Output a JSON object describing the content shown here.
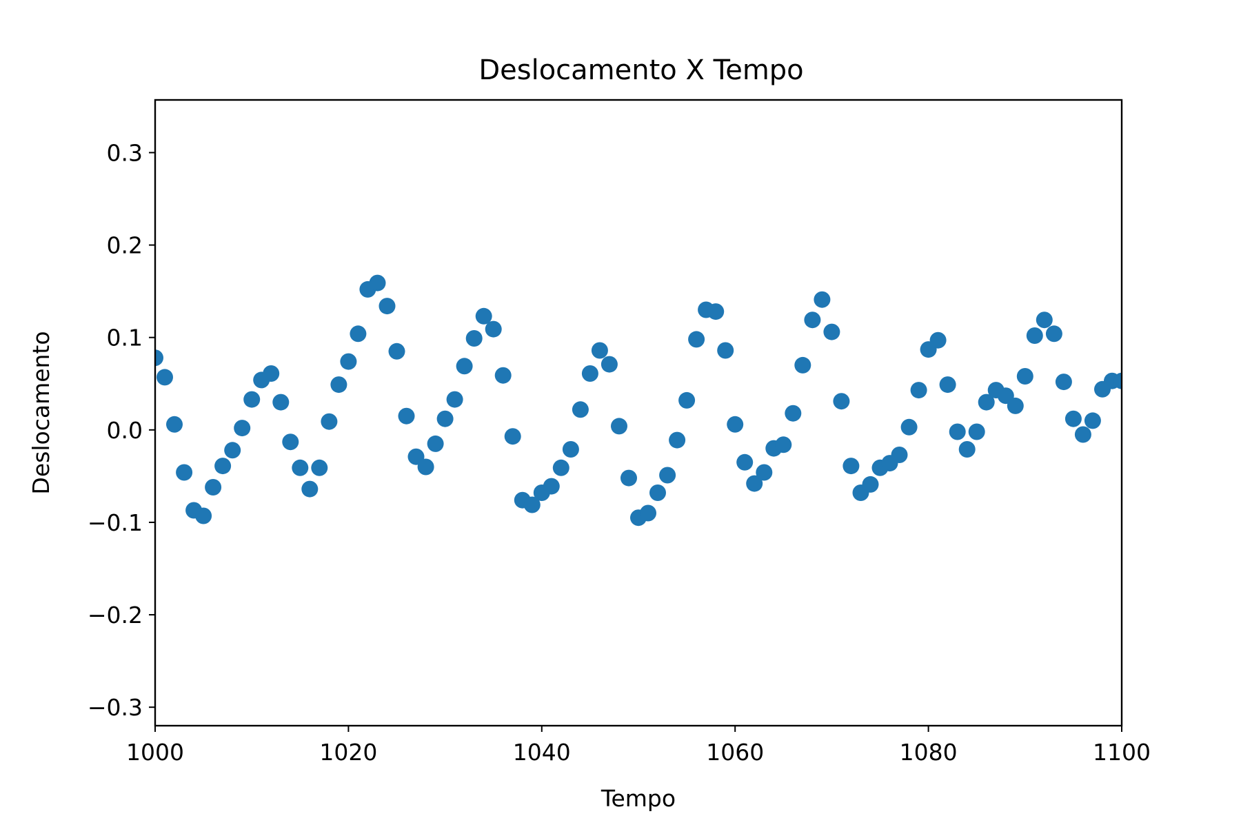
{
  "chart_data": {
    "type": "scatter",
    "title": "Deslocamento X Tempo",
    "xlabel": "Tempo",
    "ylabel": "Deslocamento",
    "xlim": [
      1000,
      1100
    ],
    "ylim": [
      -0.32,
      0.357
    ],
    "xticks": [
      1000,
      1020,
      1040,
      1060,
      1080,
      1100
    ],
    "xtick_labels": [
      "1000",
      "1020",
      "1040",
      "1060",
      "1080",
      "1100"
    ],
    "yticks": [
      -0.3,
      -0.2,
      -0.1,
      0.0,
      0.1,
      0.2,
      0.3
    ],
    "ytick_labels": [
      "−0.3",
      "−0.2",
      "−0.1",
      "0.0",
      "0.1",
      "0.2",
      "0.3"
    ],
    "grid": false,
    "color": "#1f77b4",
    "series": [
      {
        "x": [
          1000,
          1001,
          1002,
          1003,
          1004,
          1005,
          1006,
          1007,
          1008,
          1009,
          1010,
          1011,
          1012,
          1013,
          1014,
          1015,
          1016,
          1017,
          1018,
          1019,
          1020,
          1021,
          1022,
          1023,
          1024,
          1025,
          1026,
          1027,
          1028,
          1029,
          1030,
          1031,
          1032,
          1033,
          1034,
          1035,
          1036,
          1037,
          1038,
          1039,
          1040,
          1041,
          1042,
          1043,
          1044,
          1045,
          1046,
          1047,
          1048,
          1049,
          1050,
          1051,
          1052,
          1053,
          1054,
          1055,
          1056,
          1057,
          1058,
          1059,
          1060,
          1061,
          1062,
          1063,
          1064,
          1065,
          1066,
          1067,
          1068,
          1069,
          1070,
          1071,
          1072,
          1073,
          1074,
          1075,
          1076,
          1077,
          1078,
          1079,
          1080,
          1081,
          1082,
          1083,
          1084,
          1085,
          1086,
          1087,
          1088,
          1089,
          1090,
          1091,
          1092,
          1093,
          1094,
          1095,
          1096,
          1097,
          1098,
          1099,
          1100
        ],
        "y": [
          0.078,
          0.057,
          0.006,
          -0.046,
          -0.087,
          -0.093,
          -0.062,
          -0.039,
          -0.022,
          0.002,
          0.033,
          0.054,
          0.061,
          0.03,
          -0.013,
          -0.041,
          -0.064,
          -0.041,
          0.009,
          0.049,
          0.074,
          0.104,
          0.152,
          0.159,
          0.134,
          0.085,
          0.015,
          -0.029,
          -0.04,
          -0.015,
          0.012,
          0.033,
          0.069,
          0.099,
          0.123,
          0.109,
          0.059,
          -0.007,
          -0.076,
          -0.081,
          -0.068,
          -0.061,
          -0.041,
          -0.021,
          0.022,
          0.061,
          0.086,
          0.071,
          0.004,
          -0.052,
          -0.095,
          -0.09,
          -0.068,
          -0.049,
          -0.011,
          0.032,
          0.098,
          0.13,
          0.128,
          0.086,
          0.006,
          -0.035,
          -0.058,
          -0.046,
          -0.02,
          -0.016,
          0.018,
          0.07,
          0.119,
          0.141,
          0.106,
          0.031,
          -0.039,
          -0.068,
          -0.059,
          -0.041,
          -0.036,
          -0.027,
          0.003,
          0.043,
          0.087,
          0.097,
          0.049,
          -0.002,
          -0.021,
          -0.002,
          0.03,
          0.043,
          0.037,
          0.026,
          0.058,
          0.102,
          0.119,
          0.104,
          0.052,
          0.012,
          -0.005,
          0.01,
          0.044,
          0.053,
          0.053
        ]
      }
    ]
  }
}
